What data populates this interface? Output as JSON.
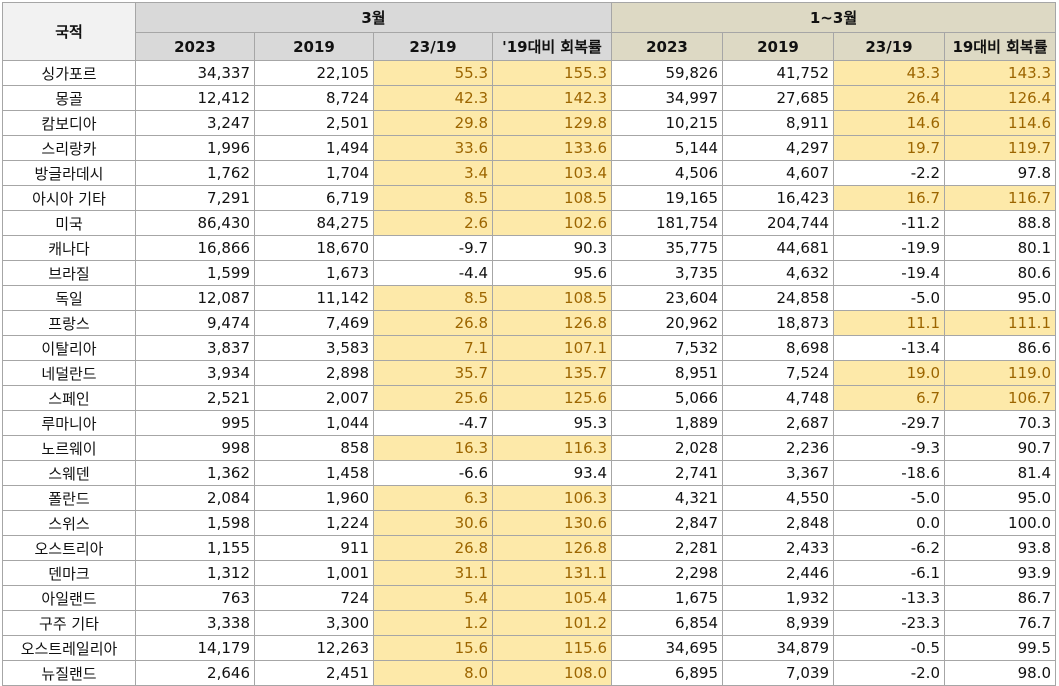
{
  "header": {
    "nationality": "국적",
    "group_march": "3월",
    "group_q1": "1~3월",
    "cols_march": [
      "2023",
      "2019",
      "23/19",
      "'19대비 회복률"
    ],
    "cols_q1": [
      "2023",
      "2019",
      "23/19",
      "19대비 회복률"
    ]
  },
  "colors": {
    "highlight_bg": "#fde9a9",
    "highlight_text": "#9c6500",
    "header_march": "#d9d9d9",
    "header_q1": "#ddd9c4"
  },
  "rows": [
    {
      "nat": "싱가포르",
      "m": [
        "34,337",
        "22,105",
        "55.3",
        "155.3"
      ],
      "q": [
        "59,826",
        "41,752",
        "43.3",
        "143.3"
      ],
      "mh": true,
      "qh": true
    },
    {
      "nat": "몽골",
      "m": [
        "12,412",
        "8,724",
        "42.3",
        "142.3"
      ],
      "q": [
        "34,997",
        "27,685",
        "26.4",
        "126.4"
      ],
      "mh": true,
      "qh": true
    },
    {
      "nat": "캄보디아",
      "m": [
        "3,247",
        "2,501",
        "29.8",
        "129.8"
      ],
      "q": [
        "10,215",
        "8,911",
        "14.6",
        "114.6"
      ],
      "mh": true,
      "qh": true
    },
    {
      "nat": "스리랑카",
      "m": [
        "1,996",
        "1,494",
        "33.6",
        "133.6"
      ],
      "q": [
        "5,144",
        "4,297",
        "19.7",
        "119.7"
      ],
      "mh": true,
      "qh": true
    },
    {
      "nat": "방글라데시",
      "m": [
        "1,762",
        "1,704",
        "3.4",
        "103.4"
      ],
      "q": [
        "4,506",
        "4,607",
        "-2.2",
        "97.8"
      ],
      "mh": true,
      "qh": false
    },
    {
      "nat": "아시아 기타",
      "m": [
        "7,291",
        "6,719",
        "8.5",
        "108.5"
      ],
      "q": [
        "19,165",
        "16,423",
        "16.7",
        "116.7"
      ],
      "mh": true,
      "qh": true
    },
    {
      "nat": "미국",
      "m": [
        "86,430",
        "84,275",
        "2.6",
        "102.6"
      ],
      "q": [
        "181,754",
        "204,744",
        "-11.2",
        "88.8"
      ],
      "mh": true,
      "qh": false
    },
    {
      "nat": "캐나다",
      "m": [
        "16,866",
        "18,670",
        "-9.7",
        "90.3"
      ],
      "q": [
        "35,775",
        "44,681",
        "-19.9",
        "80.1"
      ],
      "mh": false,
      "qh": false
    },
    {
      "nat": "브라질",
      "m": [
        "1,599",
        "1,673",
        "-4.4",
        "95.6"
      ],
      "q": [
        "3,735",
        "4,632",
        "-19.4",
        "80.6"
      ],
      "mh": false,
      "qh": false
    },
    {
      "nat": "독일",
      "m": [
        "12,087",
        "11,142",
        "8.5",
        "108.5"
      ],
      "q": [
        "23,604",
        "24,858",
        "-5.0",
        "95.0"
      ],
      "mh": true,
      "qh": false
    },
    {
      "nat": "프랑스",
      "m": [
        "9,474",
        "7,469",
        "26.8",
        "126.8"
      ],
      "q": [
        "20,962",
        "18,873",
        "11.1",
        "111.1"
      ],
      "mh": true,
      "qh": true
    },
    {
      "nat": "이탈리아",
      "m": [
        "3,837",
        "3,583",
        "7.1",
        "107.1"
      ],
      "q": [
        "7,532",
        "8,698",
        "-13.4",
        "86.6"
      ],
      "mh": true,
      "qh": false
    },
    {
      "nat": "네덜란드",
      "m": [
        "3,934",
        "2,898",
        "35.7",
        "135.7"
      ],
      "q": [
        "8,951",
        "7,524",
        "19.0",
        "119.0"
      ],
      "mh": true,
      "qh": true
    },
    {
      "nat": "스페인",
      "m": [
        "2,521",
        "2,007",
        "25.6",
        "125.6"
      ],
      "q": [
        "5,066",
        "4,748",
        "6.7",
        "106.7"
      ],
      "mh": true,
      "qh": true
    },
    {
      "nat": "루마니아",
      "m": [
        "995",
        "1,044",
        "-4.7",
        "95.3"
      ],
      "q": [
        "1,889",
        "2,687",
        "-29.7",
        "70.3"
      ],
      "mh": false,
      "qh": false
    },
    {
      "nat": "노르웨이",
      "m": [
        "998",
        "858",
        "16.3",
        "116.3"
      ],
      "q": [
        "2,028",
        "2,236",
        "-9.3",
        "90.7"
      ],
      "mh": true,
      "qh": false
    },
    {
      "nat": "스웨덴",
      "m": [
        "1,362",
        "1,458",
        "-6.6",
        "93.4"
      ],
      "q": [
        "2,741",
        "3,367",
        "-18.6",
        "81.4"
      ],
      "mh": false,
      "qh": false
    },
    {
      "nat": "폴란드",
      "m": [
        "2,084",
        "1,960",
        "6.3",
        "106.3"
      ],
      "q": [
        "4,321",
        "4,550",
        "-5.0",
        "95.0"
      ],
      "mh": true,
      "qh": false
    },
    {
      "nat": "스위스",
      "m": [
        "1,598",
        "1,224",
        "30.6",
        "130.6"
      ],
      "q": [
        "2,847",
        "2,848",
        "0.0",
        "100.0"
      ],
      "mh": true,
      "qh": false
    },
    {
      "nat": "오스트리아",
      "m": [
        "1,155",
        "911",
        "26.8",
        "126.8"
      ],
      "q": [
        "2,281",
        "2,433",
        "-6.2",
        "93.8"
      ],
      "mh": true,
      "qh": false
    },
    {
      "nat": "덴마크",
      "m": [
        "1,312",
        "1,001",
        "31.1",
        "131.1"
      ],
      "q": [
        "2,298",
        "2,446",
        "-6.1",
        "93.9"
      ],
      "mh": true,
      "qh": false
    },
    {
      "nat": "아일랜드",
      "m": [
        "763",
        "724",
        "5.4",
        "105.4"
      ],
      "q": [
        "1,675",
        "1,932",
        "-13.3",
        "86.7"
      ],
      "mh": true,
      "qh": false
    },
    {
      "nat": "구주 기타",
      "m": [
        "3,338",
        "3,300",
        "1.2",
        "101.2"
      ],
      "q": [
        "6,854",
        "8,939",
        "-23.3",
        "76.7"
      ],
      "mh": true,
      "qh": false
    },
    {
      "nat": "오스트레일리아",
      "m": [
        "14,179",
        "12,263",
        "15.6",
        "115.6"
      ],
      "q": [
        "34,695",
        "34,879",
        "-0.5",
        "99.5"
      ],
      "mh": true,
      "qh": false
    },
    {
      "nat": "뉴질랜드",
      "m": [
        "2,646",
        "2,451",
        "8.0",
        "108.0"
      ],
      "q": [
        "6,895",
        "7,039",
        "-2.0",
        "98.0"
      ],
      "mh": true,
      "qh": false
    }
  ]
}
